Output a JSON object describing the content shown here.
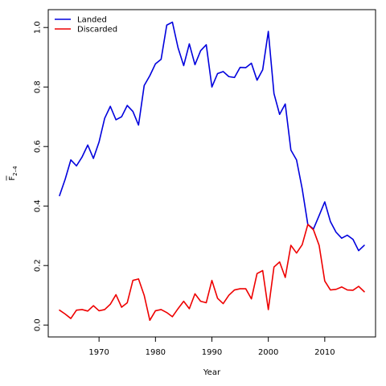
{
  "chart_data": {
    "type": "line",
    "xlabel": "Year",
    "ylabel_main": "F",
    "ylabel_sub": "2–4",
    "xlim": [
      1961,
      2019
    ],
    "ylim": [
      -0.04,
      1.06
    ],
    "xticks": [
      1970,
      1980,
      1990,
      2000,
      2010
    ],
    "yticks": [
      0.0,
      0.2,
      0.4,
      0.6,
      0.8,
      1.0
    ],
    "ytick_labels": [
      "0.0",
      "0.2",
      "0.4",
      "0.6",
      "0.8",
      "1.0"
    ],
    "legend_position": "top-left",
    "series": [
      {
        "name": "Landed",
        "color": "#0000dd",
        "x": [
          1963,
          1964,
          1965,
          1966,
          1967,
          1968,
          1969,
          1970,
          1971,
          1972,
          1973,
          1974,
          1975,
          1976,
          1977,
          1978,
          1979,
          1980,
          1981,
          1982,
          1983,
          1984,
          1985,
          1986,
          1987,
          1988,
          1989,
          1990,
          1991,
          1992,
          1993,
          1994,
          1995,
          1996,
          1997,
          1998,
          1999,
          2000,
          2001,
          2002,
          2003,
          2004,
          2005,
          2006,
          2007,
          2008,
          2009,
          2010,
          2011,
          2012,
          2013,
          2014,
          2015,
          2016,
          2017
        ],
        "y": [
          0.435,
          0.49,
          0.555,
          0.535,
          0.565,
          0.605,
          0.56,
          0.615,
          0.695,
          0.735,
          0.69,
          0.7,
          0.738,
          0.718,
          0.672,
          0.805,
          0.838,
          0.878,
          0.893,
          1.008,
          1.018,
          0.932,
          0.872,
          0.945,
          0.875,
          0.922,
          0.942,
          0.8,
          0.845,
          0.852,
          0.835,
          0.832,
          0.866,
          0.865,
          0.88,
          0.823,
          0.858,
          0.987,
          0.778,
          0.708,
          0.743,
          0.588,
          0.555,
          0.458,
          0.338,
          0.323,
          0.368,
          0.414,
          0.348,
          0.312,
          0.292,
          0.302,
          0.288,
          0.25,
          0.268
        ]
      },
      {
        "name": "Discarded",
        "color": "#ee0000",
        "x": [
          1963,
          1964,
          1965,
          1966,
          1967,
          1968,
          1969,
          1970,
          1971,
          1972,
          1973,
          1974,
          1975,
          1976,
          1977,
          1978,
          1979,
          1980,
          1981,
          1982,
          1983,
          1984,
          1985,
          1986,
          1987,
          1988,
          1989,
          1990,
          1991,
          1992,
          1993,
          1994,
          1995,
          1996,
          1997,
          1998,
          1999,
          2000,
          2001,
          2002,
          2003,
          2004,
          2005,
          2006,
          2007,
          2008,
          2009,
          2010,
          2011,
          2012,
          2013,
          2014,
          2015,
          2016,
          2017
        ],
        "y": [
          0.05,
          0.037,
          0.022,
          0.05,
          0.052,
          0.047,
          0.065,
          0.048,
          0.052,
          0.07,
          0.102,
          0.06,
          0.075,
          0.15,
          0.155,
          0.1,
          0.016,
          0.048,
          0.052,
          0.042,
          0.028,
          0.055,
          0.08,
          0.055,
          0.105,
          0.08,
          0.075,
          0.15,
          0.09,
          0.072,
          0.1,
          0.118,
          0.122,
          0.122,
          0.088,
          0.173,
          0.183,
          0.052,
          0.195,
          0.212,
          0.16,
          0.268,
          0.242,
          0.27,
          0.338,
          0.32,
          0.268,
          0.148,
          0.118,
          0.12,
          0.128,
          0.118,
          0.117,
          0.13,
          0.112
        ]
      }
    ]
  }
}
